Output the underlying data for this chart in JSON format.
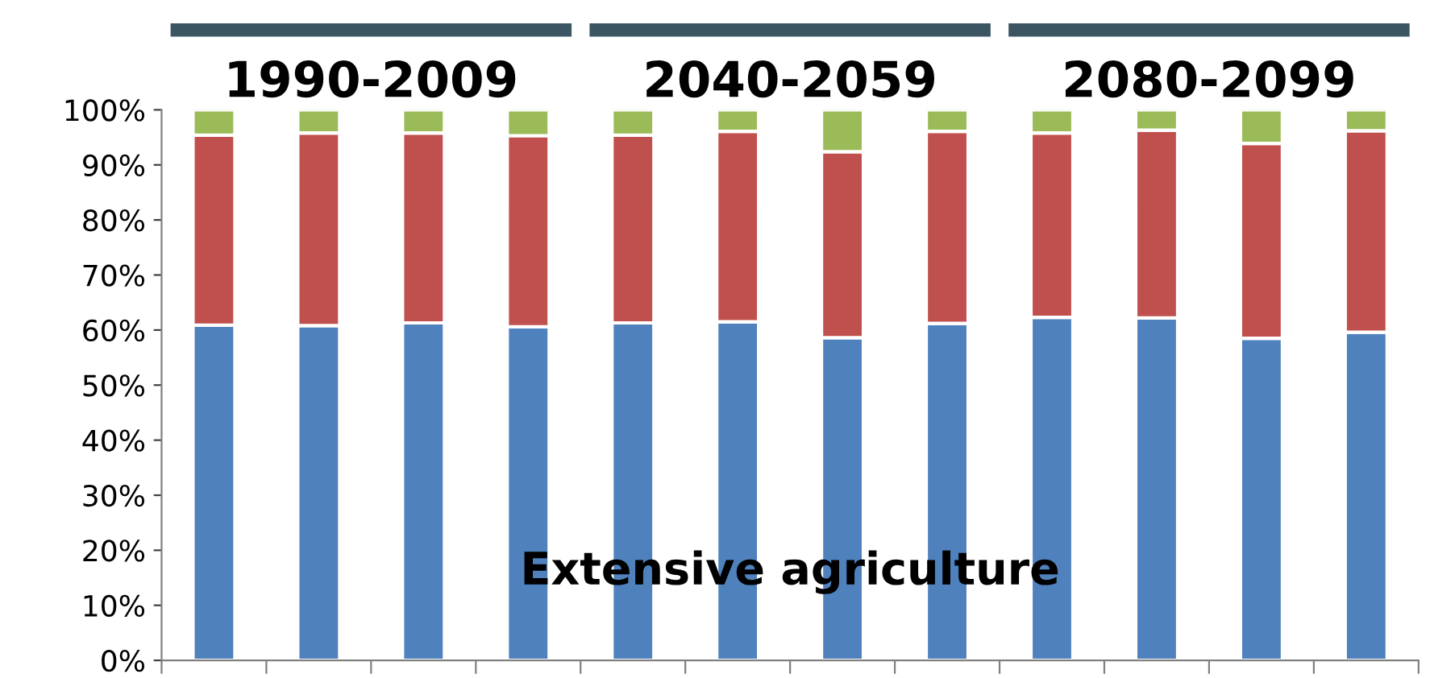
{
  "chart_data": {
    "type": "bar",
    "stacked": true,
    "categories": [
      null,
      null,
      null,
      null,
      null,
      null,
      null,
      null,
      null,
      null,
      null,
      null
    ],
    "series": [
      {
        "color": "#4f81bd",
        "values": [
          60.9,
          60.8,
          61.3,
          60.6,
          61.3,
          61.5,
          58.6,
          61.2,
          62.3,
          62.2,
          58.5,
          59.6
        ]
      },
      {
        "color": "#c0504d",
        "values": [
          34.5,
          35.0,
          34.5,
          34.7,
          34.1,
          34.6,
          33.8,
          34.9,
          33.5,
          34.1,
          35.4,
          36.6
        ]
      },
      {
        "color": "#9bbb59",
        "values": [
          4.6,
          4.2,
          4.2,
          4.7,
          4.6,
          3.9,
          7.6,
          3.9,
          4.2,
          3.7,
          6.1,
          3.8
        ]
      }
    ],
    "ylim": [
      0,
      100
    ],
    "yticks": [
      {
        "value": 0,
        "label": "0%"
      },
      {
        "value": 10,
        "label": "10%"
      },
      {
        "value": 20,
        "label": "20%"
      },
      {
        "value": 30,
        "label": "30%"
      },
      {
        "value": 40,
        "label": "40%"
      },
      {
        "value": 50,
        "label": "50%"
      },
      {
        "value": 60,
        "label": "60%"
      },
      {
        "value": 70,
        "label": "70%"
      },
      {
        "value": 80,
        "label": "80%"
      },
      {
        "value": 90,
        "label": "90%"
      },
      {
        "value": 100,
        "label": "100%"
      }
    ],
    "tick_labels": "y",
    "grid": false,
    "annotations": [
      "1990-2009",
      "2040-2059",
      "2080-2099",
      "Extensive agriculture"
    ]
  }
}
